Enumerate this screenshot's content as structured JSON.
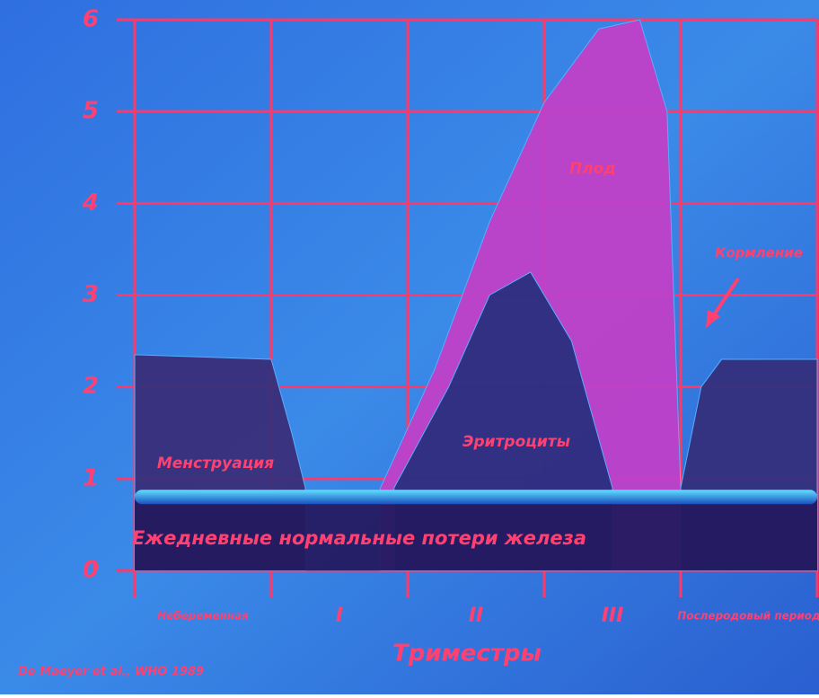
{
  "chart_data": {
    "type": "area",
    "xlabel": "Триместры",
    "source": "De Maeyer et al., WHO 1989",
    "categories": [
      "Небеременная",
      "I",
      "II",
      "III",
      "Послеродовый период"
    ],
    "ylim": [
      0,
      6
    ],
    "yticks": [
      0,
      1,
      2,
      3,
      4,
      5,
      6
    ],
    "grid": true,
    "series": [
      {
        "name": "Менструация",
        "color": "#3a2f7a",
        "x": [
          0,
          1.0,
          1.15,
          1.25
        ],
        "values": [
          2.35,
          2.3,
          1.5,
          0.9
        ]
      },
      {
        "name": "Плод",
        "color": "#c040c8",
        "x": [
          1.8,
          2.2,
          2.6,
          3.0,
          3.4,
          3.7,
          3.9,
          4.0
        ],
        "values": [
          0.9,
          2.2,
          3.8,
          5.1,
          5.9,
          6.0,
          5.0,
          0.9
        ]
      },
      {
        "name": "Эритроциты",
        "color": "#2a2f80",
        "x": [
          1.9,
          2.3,
          2.6,
          2.9,
          3.2,
          3.5
        ],
        "values": [
          0.9,
          2.0,
          3.0,
          3.25,
          2.5,
          0.9
        ]
      },
      {
        "name": "Кормление",
        "color": "#34307e",
        "x": [
          4.0,
          4.15,
          4.3,
          5.0
        ],
        "values": [
          0.9,
          2.0,
          2.3,
          2.3
        ]
      },
      {
        "name": "Ежедневные нормальные потери железа",
        "color": "#241a60",
        "x": [
          0,
          5
        ],
        "values": [
          0.8,
          0.8
        ]
      }
    ]
  }
}
